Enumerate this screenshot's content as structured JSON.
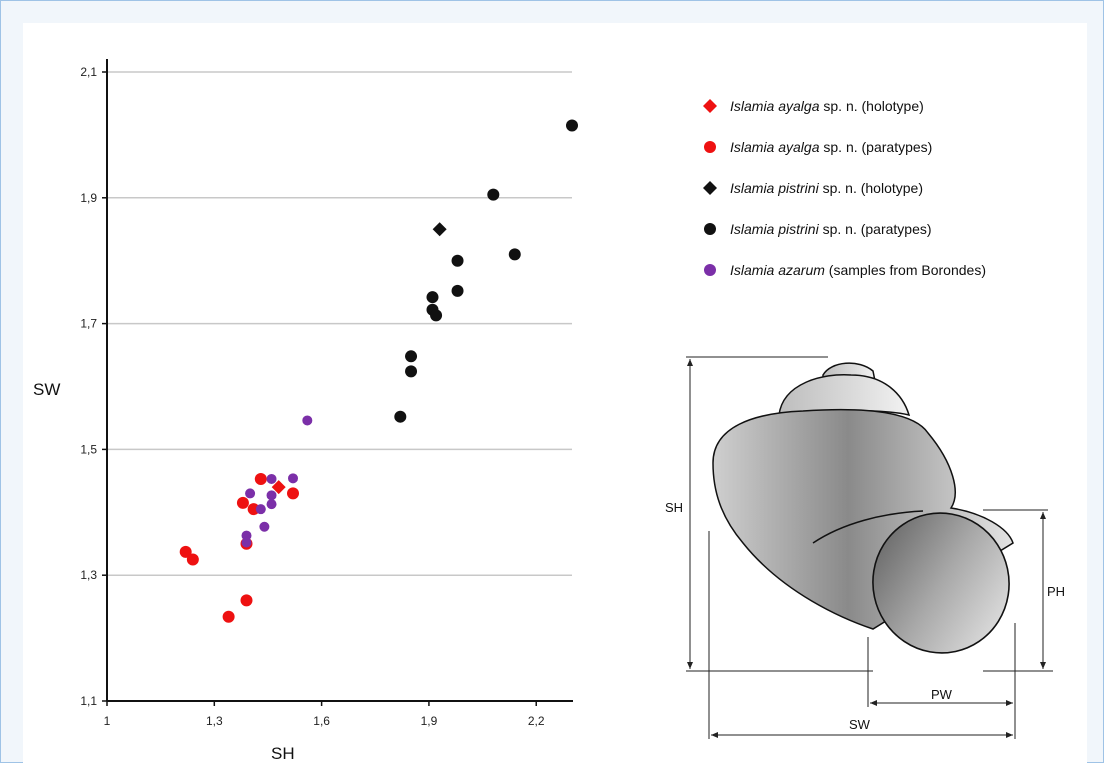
{
  "chart_data": {
    "type": "scatter",
    "xlabel": "SH",
    "ylabel": "SW",
    "xlim": [
      1,
      2.3
    ],
    "ylim": [
      1.1,
      2.1
    ],
    "xticks": [
      "1",
      "1,3",
      "1,6",
      "1,9",
      "2,2"
    ],
    "yticks": [
      "1,1",
      "1,3",
      "1,5",
      "1,7",
      "1,9",
      "2,1"
    ],
    "grid": true,
    "legend_position": "top-right",
    "series": [
      {
        "legend": [
          {
            "text": "Islamia ayalga",
            "italic": true
          },
          {
            "text": " sp. n. (holotype)",
            "italic": false
          }
        ],
        "marker": "diamond",
        "color": "#ee1111",
        "points": [
          [
            1.48,
            1.44
          ]
        ]
      },
      {
        "legend": [
          {
            "text": "Islamia ayalga",
            "italic": true
          },
          {
            "text": " sp. n. (paratypes)",
            "italic": false
          }
        ],
        "marker": "circle",
        "color": "#ee1111",
        "points": [
          [
            1.22,
            1.337
          ],
          [
            1.24,
            1.325
          ],
          [
            1.34,
            1.234
          ],
          [
            1.38,
            1.415
          ],
          [
            1.39,
            1.26
          ],
          [
            1.41,
            1.405
          ],
          [
            1.43,
            1.453
          ],
          [
            1.52,
            1.43
          ],
          [
            1.39,
            1.35
          ]
        ]
      },
      {
        "legend": [
          {
            "text": "Islamia pistrini",
            "italic": true
          },
          {
            "text": " sp. n. (holotype)",
            "italic": false
          }
        ],
        "marker": "diamond",
        "color": "#111111",
        "points": [
          [
            1.93,
            1.85
          ]
        ]
      },
      {
        "legend": [
          {
            "text": "Islamia pistrini",
            "italic": true
          },
          {
            "text": " sp. n. (paratypes)",
            "italic": false
          }
        ],
        "marker": "circle",
        "color": "#111111",
        "points": [
          [
            2.3,
            2.015
          ],
          [
            2.08,
            1.905
          ],
          [
            2.14,
            1.81
          ],
          [
            1.98,
            1.8
          ],
          [
            1.98,
            1.752
          ],
          [
            1.91,
            1.742
          ],
          [
            1.91,
            1.722
          ],
          [
            1.92,
            1.713
          ],
          [
            1.85,
            1.648
          ],
          [
            1.85,
            1.624
          ],
          [
            1.82,
            1.552
          ]
        ]
      },
      {
        "legend": [
          {
            "text": "Islamia azarum",
            "italic": true
          },
          {
            "text": " (samples from Borondes)",
            "italic": false
          }
        ],
        "marker": "circle-small",
        "color": "#7b2fa8",
        "points": [
          [
            1.56,
            1.546
          ],
          [
            1.46,
            1.453
          ],
          [
            1.52,
            1.454
          ],
          [
            1.4,
            1.43
          ],
          [
            1.46,
            1.427
          ],
          [
            1.46,
            1.413
          ],
          [
            1.43,
            1.405
          ],
          [
            1.44,
            1.377
          ],
          [
            1.39,
            1.363
          ],
          [
            1.39,
            1.352
          ]
        ]
      }
    ]
  },
  "diagram": {
    "labels": {
      "sh": "SH",
      "sw": "SW",
      "ph": "PH",
      "pw": "PW"
    }
  }
}
